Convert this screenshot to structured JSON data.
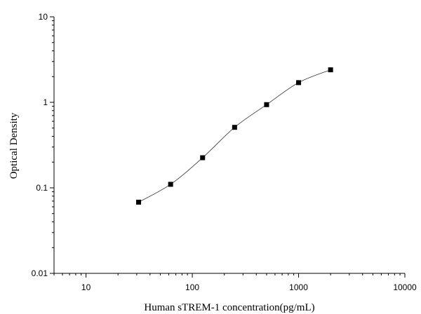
{
  "chart_data": {
    "type": "scatter",
    "title": "",
    "xlabel": "Human sTREM-1 concentration(pg/mL)",
    "ylabel": "Optical Density",
    "x_scale": "log",
    "y_scale": "log",
    "xlim": [
      5,
      10000
    ],
    "ylim": [
      0.01,
      10
    ],
    "x_ticks": [
      10,
      100,
      1000,
      10000
    ],
    "x_tick_labels": [
      "10",
      "100",
      "1000",
      "10000"
    ],
    "y_ticks": [
      0.01,
      0.1,
      1,
      10
    ],
    "y_tick_labels": [
      "0.01",
      "0.1",
      "1",
      "10"
    ],
    "grid": false,
    "legend": "none",
    "series": [
      {
        "x": [
          31.25,
          62.5,
          125,
          250,
          500,
          1000,
          2000
        ],
        "y": [
          0.068,
          0.11,
          0.225,
          0.51,
          0.94,
          1.7,
          2.4
        ]
      }
    ],
    "marker_color": "#000000",
    "line_color": "#333333"
  }
}
